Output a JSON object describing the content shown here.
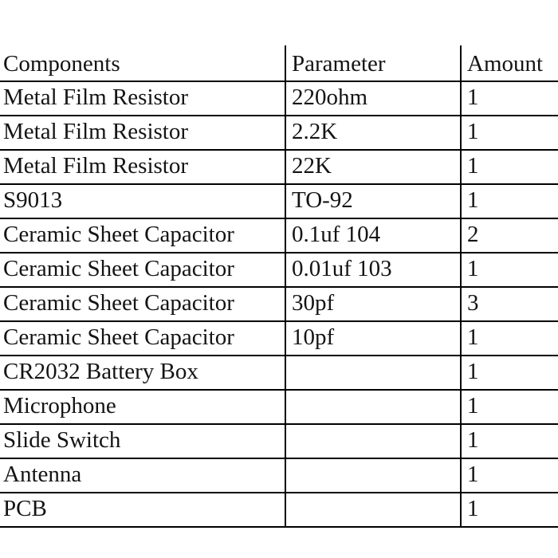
{
  "page": {
    "background_color": "#ffffff",
    "text_color": "#141414",
    "grid_color": "#000000"
  },
  "table": {
    "columns": [
      "Components",
      "Parameter",
      "Amount"
    ],
    "rows": [
      [
        "Metal Film Resistor",
        "220ohm",
        "1"
      ],
      [
        "Metal Film Resistor",
        "2.2K",
        "1"
      ],
      [
        "Metal Film Resistor",
        "22K",
        "1"
      ],
      [
        "S9013",
        "TO-92",
        "1"
      ],
      [
        "Ceramic Sheet Capacitor",
        "0.1uf 104",
        "2"
      ],
      [
        "Ceramic Sheet Capacitor",
        "0.01uf 103",
        "1"
      ],
      [
        "Ceramic Sheet Capacitor",
        "30pf",
        "3"
      ],
      [
        "Ceramic Sheet Capacitor",
        "10pf",
        "1"
      ],
      [
        "CR2032 Battery Box",
        "",
        "1"
      ],
      [
        "Microphone",
        "",
        "1"
      ],
      [
        "Slide Switch",
        "",
        "1"
      ],
      [
        "Antenna",
        "",
        "1"
      ],
      [
        "PCB",
        "",
        "1"
      ]
    ]
  }
}
